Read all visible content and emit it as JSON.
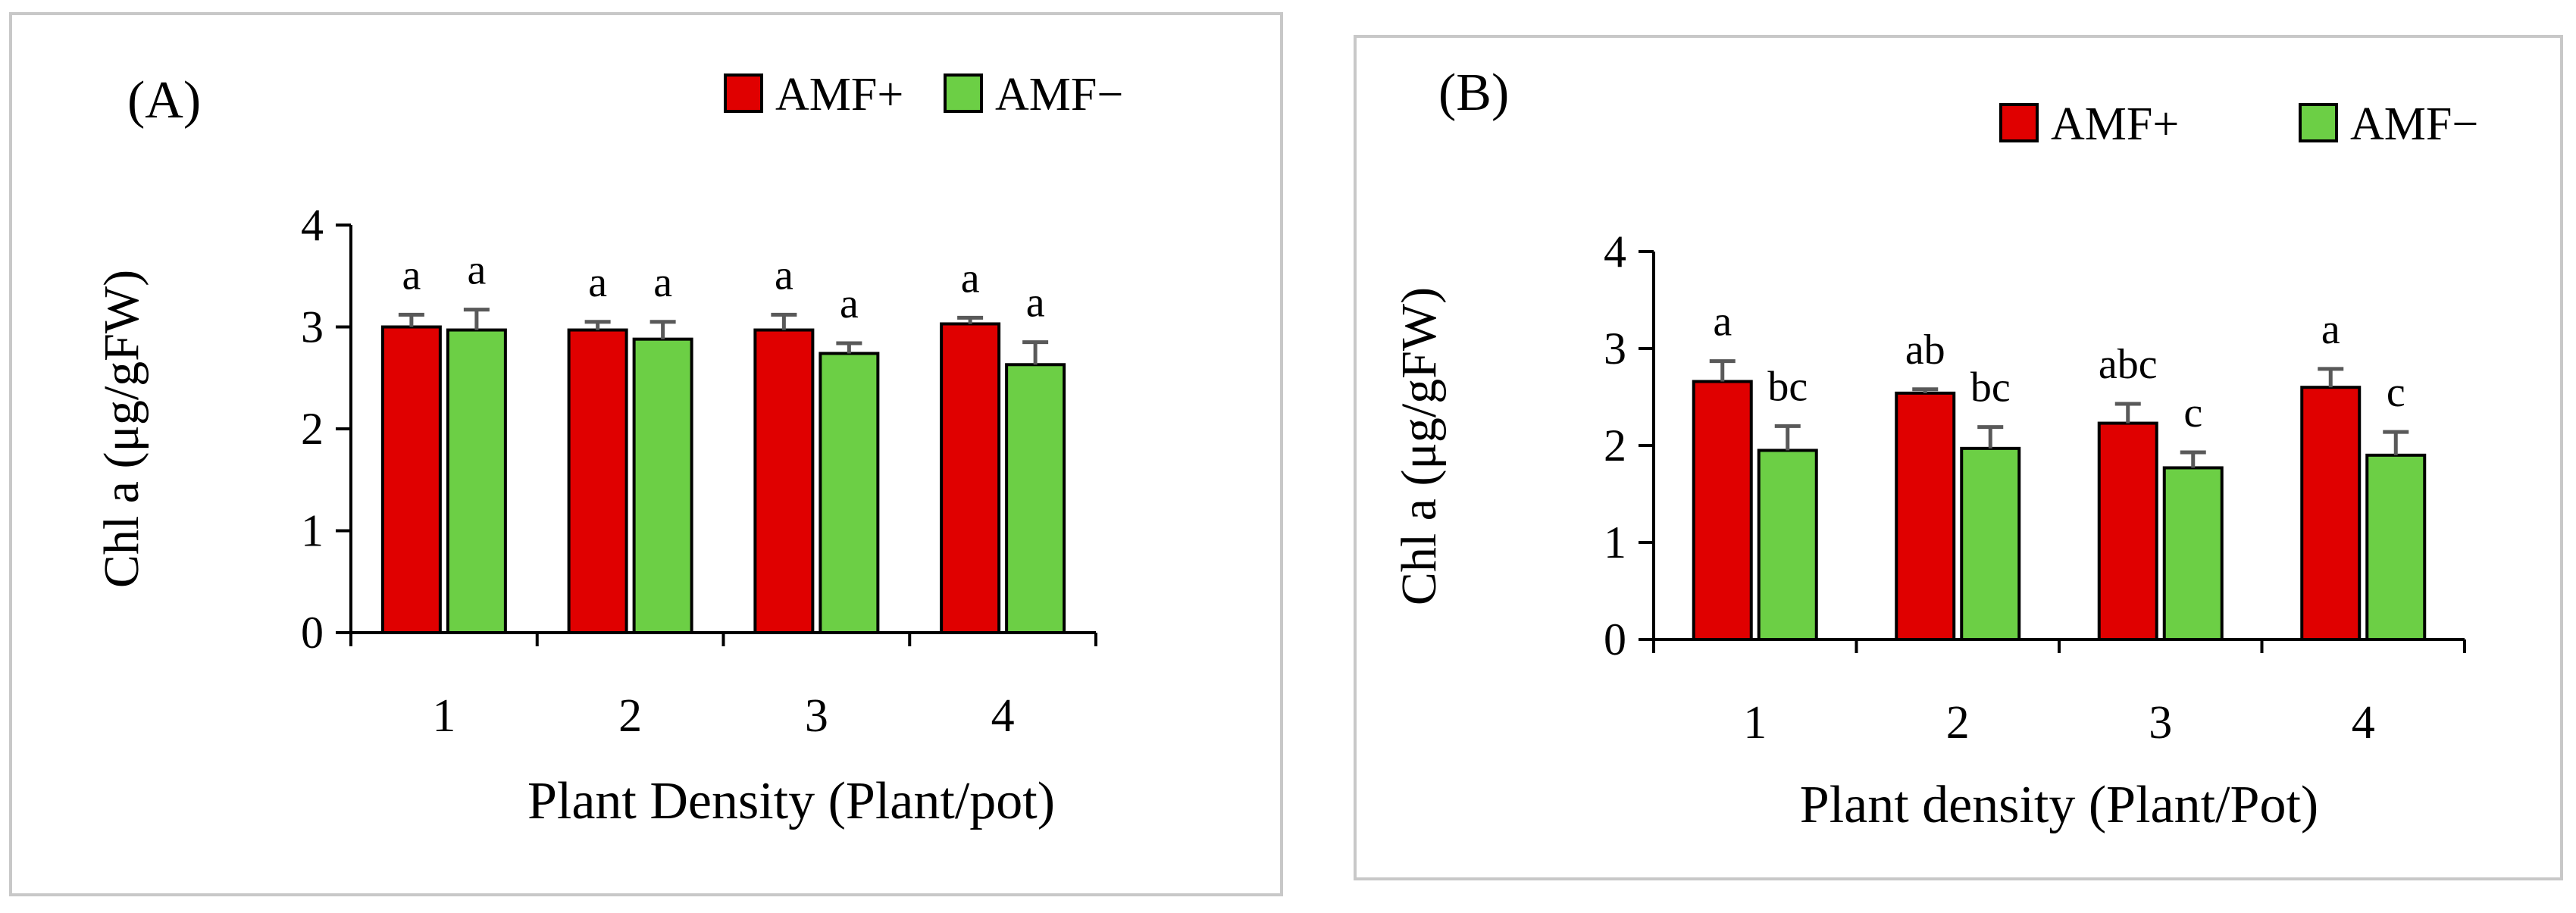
{
  "chart_data": [
    {
      "type": "bar",
      "panel_label": "(A)",
      "categories": [
        "1",
        "2",
        "3",
        "4"
      ],
      "series": [
        {
          "name": "AMF+",
          "color": "#e00000",
          "values": [
            3.0,
            2.97,
            2.97,
            3.03
          ],
          "errors": [
            0.12,
            0.08,
            0.15,
            0.06
          ],
          "letters": [
            "a",
            "a",
            "a",
            "a"
          ]
        },
        {
          "name": "AMF−",
          "color": "#6ccf45",
          "values": [
            2.97,
            2.88,
            2.74,
            2.63
          ],
          "errors": [
            0.2,
            0.17,
            0.1,
            0.22
          ],
          "letters": [
            "a",
            "a",
            "a",
            "a"
          ]
        }
      ],
      "xlabel": "Plant Density (Plant/pot)",
      "ylabel": "Chl a (μg/gFW)",
      "ylim": [
        0,
        4
      ],
      "yticks": [
        "0",
        "1",
        "2",
        "3",
        "4"
      ],
      "grid": false,
      "legend": "top-right"
    },
    {
      "type": "bar",
      "panel_label": "(B)",
      "categories": [
        "1",
        "2",
        "3",
        "4"
      ],
      "series": [
        {
          "name": "AMF+",
          "color": "#e00000",
          "values": [
            2.66,
            2.54,
            2.23,
            2.6
          ],
          "errors": [
            0.21,
            0.04,
            0.2,
            0.19
          ],
          "letters": [
            "a",
            "ab",
            "abc",
            "a"
          ]
        },
        {
          "name": "AMF−",
          "color": "#6ccf45",
          "values": [
            1.95,
            1.97,
            1.77,
            1.9
          ],
          "errors": [
            0.25,
            0.22,
            0.16,
            0.24
          ],
          "letters": [
            "bc",
            "bc",
            "c",
            "c"
          ]
        }
      ],
      "xlabel": "Plant density (Plant/Pot)",
      "ylabel": "Chl a (μg/gFW)",
      "ylim": [
        0,
        4
      ],
      "yticks": [
        "0",
        "1",
        "2",
        "3",
        "4"
      ],
      "grid": false,
      "legend": "top-right"
    }
  ]
}
